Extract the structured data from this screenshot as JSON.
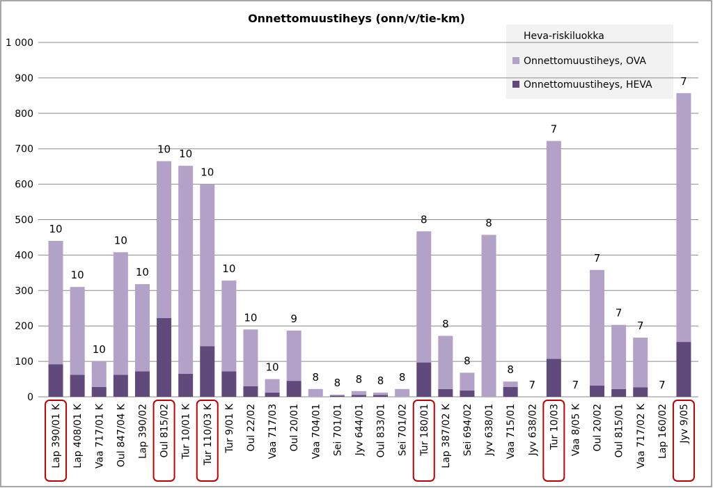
{
  "chart_data": {
    "type": "stacked_bar",
    "title": "Onnettomuustiheys (onn/v/tie-km)",
    "categories": [
      "Lap 390/01 K",
      "Lap 408/01 K",
      "Vaa 717/01 K",
      "Oul 847/04 K",
      "Lap 390/02",
      "Oul 815/02",
      "Tur 10/01 K",
      "Tur 110/03 K",
      "Tur 9/01 K",
      "Oul 22/02",
      "Vaa 717/03",
      "Oul 20/01",
      "Vaa 704/01",
      "Sei 701/01",
      "Jyv 644/01",
      "Oul 833/01",
      "Sei 701/02",
      "Tur 180/01",
      "Lap 387/02 K",
      "Sei 694/02",
      "Jyv 638/01",
      "Vaa 715/01",
      "Jyv 638/02",
      "Tur 10/03",
      "Vaa 8/05 K",
      "Oul 20/02",
      "Oul 815/01",
      "Vaa 717/02 K",
      "Lap 160/02",
      "Jyv 9/05"
    ],
    "series": [
      {
        "name": "Onnettomuustiheys, HEVA",
        "color": "#604a7b",
        "values": [
          92,
          62,
          28,
          62,
          72,
          222,
          65,
          143,
          72,
          30,
          12,
          45,
          0,
          3,
          5,
          5,
          0,
          97,
          22,
          18,
          0,
          28,
          0,
          107,
          0,
          32,
          22,
          27,
          0,
          155
        ]
      },
      {
        "name": "Onnettomuustiheys, OVA",
        "color": "#b3a2c7",
        "values": [
          348,
          248,
          72,
          346,
          246,
          443,
          587,
          457,
          256,
          160,
          38,
          142,
          22,
          3,
          11,
          7,
          22,
          370,
          150,
          50,
          457,
          15,
          0,
          615,
          0,
          326,
          181,
          140,
          0,
          702
        ]
      }
    ],
    "risk_class": {
      "name": "Heva-riskiluokka",
      "values": [
        10,
        10,
        10,
        10,
        10,
        10,
        10,
        10,
        10,
        10,
        10,
        9,
        8,
        8,
        8,
        8,
        8,
        8,
        8,
        8,
        8,
        8,
        7,
        7,
        7,
        7,
        7,
        7,
        7,
        7
      ]
    },
    "highlighted": [
      0,
      5,
      7,
      17,
      23,
      29
    ],
    "highlight_color": "#c00000",
    "ylim": [
      0,
      1000
    ],
    "yticks": [
      0,
      100,
      200,
      300,
      400,
      500,
      600,
      700,
      800,
      900,
      {
        "value": 1000,
        "label": "1 000"
      }
    ],
    "grid": true
  }
}
